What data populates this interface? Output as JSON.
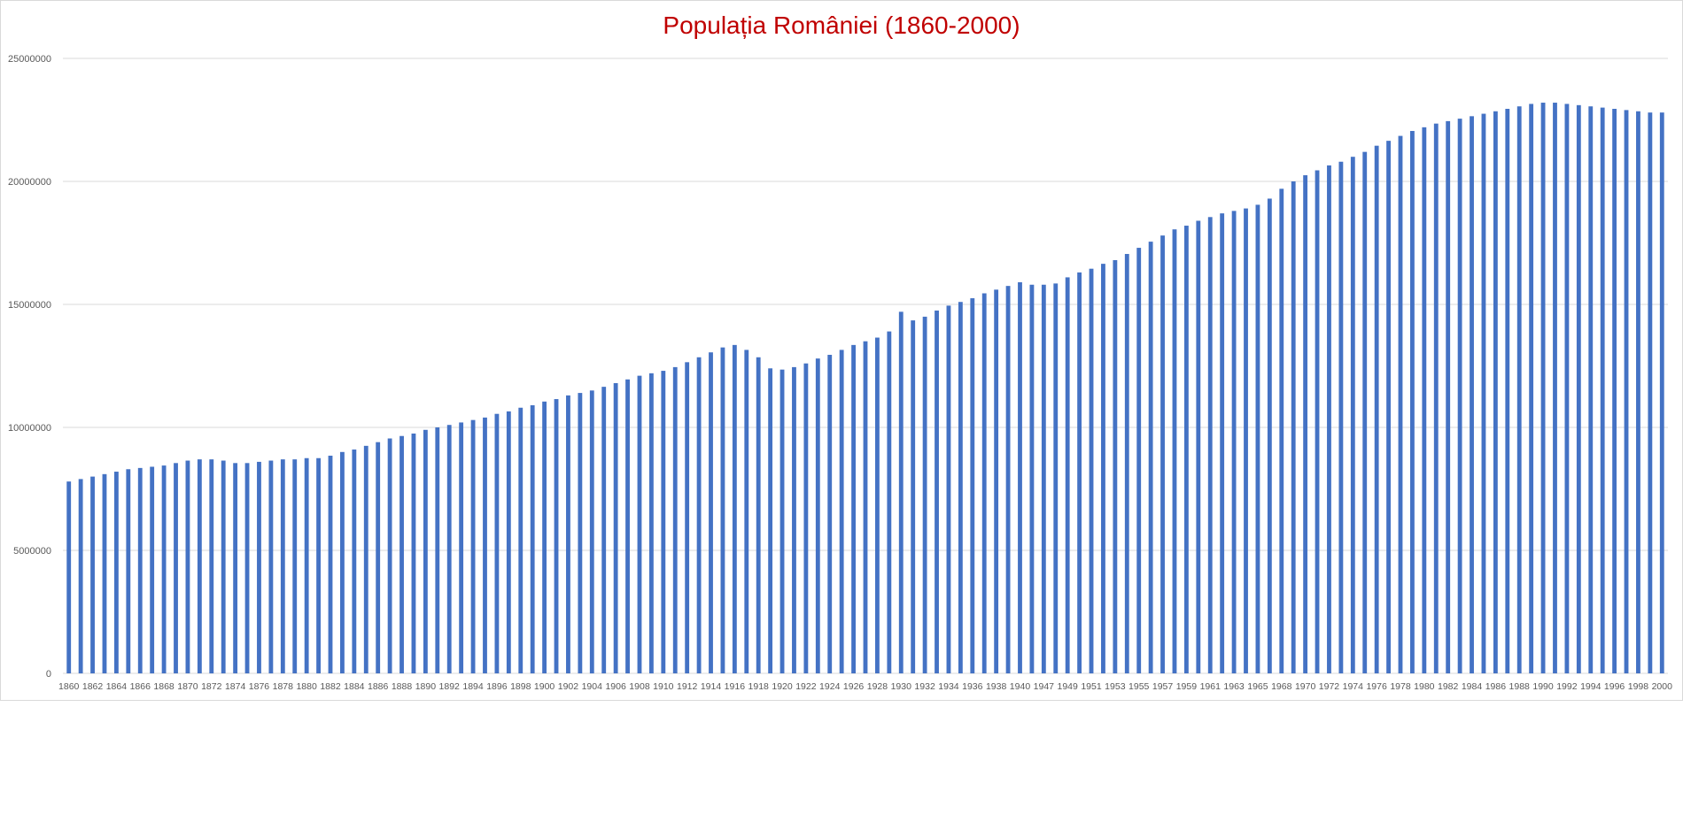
{
  "chart_data": {
    "type": "bar",
    "title": "Populația României (1860-2000)",
    "xlabel": "",
    "ylabel": "",
    "ylim": [
      0,
      25000000
    ],
    "y_ticks": [
      "0",
      "5000000",
      "10000000",
      "15000000",
      "20000000",
      "25000000"
    ],
    "grid": true,
    "legend": "none",
    "bar_color": "#4472C4",
    "title_color": "#C00000",
    "categories": [
      "1860",
      "1861",
      "1862",
      "1863",
      "1864",
      "1865",
      "1866",
      "1867",
      "1868",
      "1869",
      "1870",
      "1871",
      "1872",
      "1873",
      "1874",
      "1875",
      "1876",
      "1877",
      "1878",
      "1879",
      "1880",
      "1881",
      "1882",
      "1883",
      "1884",
      "1885",
      "1886",
      "1887",
      "1888",
      "1889",
      "1890",
      "1891",
      "1892",
      "1893",
      "1894",
      "1895",
      "1896",
      "1897",
      "1898",
      "1899",
      "1900",
      "1901",
      "1902",
      "1903",
      "1904",
      "1905",
      "1906",
      "1907",
      "1908",
      "1909",
      "1910",
      "1911",
      "1912",
      "1913",
      "1914",
      "1915",
      "1916",
      "1917",
      "1918",
      "1919",
      "1920",
      "1921",
      "1922",
      "1923",
      "1924",
      "1925",
      "1926",
      "1927",
      "1928",
      "1929",
      "1930",
      "1931",
      "1932",
      "1933",
      "1934",
      "1935",
      "1936",
      "1937",
      "1938",
      "1939",
      "1940",
      "1941",
      "1947",
      "1948",
      "1949",
      "1950",
      "1951",
      "1952",
      "1953",
      "1954",
      "1955",
      "1956",
      "1957",
      "1958",
      "1959",
      "1960",
      "1961",
      "1962",
      "1963",
      "1964",
      "1965",
      "1966",
      "1968",
      "1969",
      "1970",
      "1971",
      "1972",
      "1973",
      "1974",
      "1975",
      "1976",
      "1977",
      "1978",
      "1979",
      "1980",
      "1981",
      "1982",
      "1983",
      "1984",
      "1985",
      "1986",
      "1987",
      "1988",
      "1989",
      "1990",
      "1991",
      "1992",
      "1993",
      "1994",
      "1995",
      "1996",
      "1997",
      "1998",
      "1999",
      "2000"
    ],
    "x_tick_labels": [
      "1860",
      "1862",
      "1864",
      "1866",
      "1868",
      "1870",
      "1872",
      "1874",
      "1876",
      "1878",
      "1880",
      "1882",
      "1884",
      "1886",
      "1888",
      "1890",
      "1892",
      "1894",
      "1896",
      "1898",
      "1900",
      "1902",
      "1904",
      "1906",
      "1908",
      "1910",
      "1912",
      "1914",
      "1916",
      "1918",
      "1920",
      "1922",
      "1924",
      "1926",
      "1928",
      "1930",
      "1932",
      "1934",
      "1936",
      "1938",
      "1940",
      "1947",
      "1949",
      "1951",
      "1953",
      "1955",
      "1957",
      "1959",
      "1961",
      "1963",
      "1965",
      "1968",
      "1970",
      "1972",
      "1974",
      "1976",
      "1978",
      "1980",
      "1982",
      "1984",
      "1986",
      "1988",
      "1990",
      "1992",
      "1994",
      "1996",
      "1998",
      "2000"
    ],
    "values": [
      7800000,
      7900000,
      8000000,
      8100000,
      8200000,
      8300000,
      8350000,
      8400000,
      8450000,
      8550000,
      8650000,
      8700000,
      8700000,
      8650000,
      8550000,
      8550000,
      8600000,
      8650000,
      8700000,
      8700000,
      8750000,
      8750000,
      8850000,
      9000000,
      9100000,
      9250000,
      9400000,
      9550000,
      9650000,
      9750000,
      9900000,
      10000000,
      10100000,
      10200000,
      10300000,
      10400000,
      10550000,
      10650000,
      10800000,
      10900000,
      11050000,
      11150000,
      11300000,
      11400000,
      11500000,
      11650000,
      11800000,
      11950000,
      12100000,
      12200000,
      12300000,
      12450000,
      12650000,
      12850000,
      13050000,
      13250000,
      13350000,
      13150000,
      12850000,
      12400000,
      12350000,
      12450000,
      12600000,
      12800000,
      12950000,
      13150000,
      13350000,
      13500000,
      13650000,
      13900000,
      14700000,
      14350000,
      14500000,
      14750000,
      14950000,
      15100000,
      15250000,
      15450000,
      15600000,
      15750000,
      15900000,
      15800000,
      15800000,
      15850000,
      16100000,
      16300000,
      16450000,
      16650000,
      16800000,
      17050000,
      17300000,
      17550000,
      17800000,
      18050000,
      18200000,
      18400000,
      18550000,
      18700000,
      18800000,
      18900000,
      19050000,
      19300000,
      19700000,
      20000000,
      20250000,
      20450000,
      20650000,
      20800000,
      21000000,
      21200000,
      21450000,
      21650000,
      21850000,
      22050000,
      22200000,
      22350000,
      22450000,
      22550000,
      22650000,
      22750000,
      22850000,
      22950000,
      23050000,
      23150000,
      23200000,
      23200000,
      23150000,
      23100000,
      23050000,
      23000000,
      22950000,
      22900000,
      22850000,
      22800000,
      22800000
    ]
  }
}
